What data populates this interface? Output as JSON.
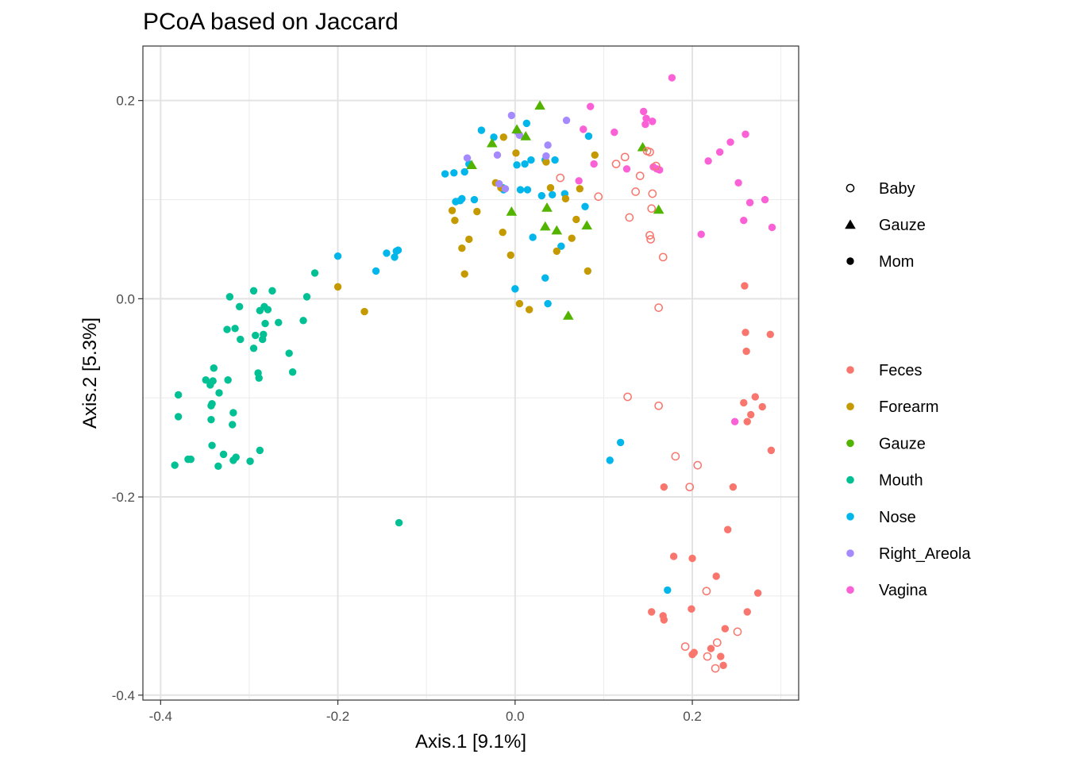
{
  "chart_data": {
    "type": "scatter",
    "title": "PCoA based on Jaccard",
    "xlabel": "Axis.1   [9.1%]",
    "ylabel": "Axis.2   [5.3%]",
    "xlim": [
      -0.42,
      0.32
    ],
    "ylim": [
      -0.405,
      0.255
    ],
    "x_ticks": [
      -0.4,
      -0.2,
      0.0,
      0.2
    ],
    "y_ticks": [
      -0.4,
      -0.2,
      0.0,
      0.2
    ],
    "x_tick_labels": [
      "-0.4",
      "-0.2",
      "0.0",
      "0.2"
    ],
    "y_tick_labels": [
      "-0.4",
      "-0.2",
      "0.0",
      "0.2"
    ],
    "grid": true,
    "background": "white",
    "legend_position": "right",
    "shape_legend": [
      {
        "name": "Baby",
        "shape": "open-circle"
      },
      {
        "name": "Gauze",
        "shape": "triangle"
      },
      {
        "name": "Mom",
        "shape": "circle"
      }
    ],
    "color_legend": [
      {
        "name": "Feces",
        "color": "#F8766D"
      },
      {
        "name": "Forearm",
        "color": "#C49A00"
      },
      {
        "name": "Gauze",
        "color": "#53B400"
      },
      {
        "name": "Mouth",
        "color": "#00C094"
      },
      {
        "name": "Nose",
        "color": "#00B6EB"
      },
      {
        "name": "Right_Areola",
        "color": "#A58AFF"
      },
      {
        "name": "Vagina",
        "color": "#FB61D7"
      }
    ],
    "series": [
      {
        "color": "Mouth",
        "shape": "Mom",
        "points": [
          [
            -0.322,
            0.002
          ],
          [
            -0.295,
            0.008
          ],
          [
            -0.274,
            0.008
          ],
          [
            -0.226,
            0.026
          ],
          [
            -0.235,
            0.002
          ],
          [
            -0.311,
            -0.008
          ],
          [
            -0.283,
            -0.008
          ],
          [
            -0.288,
            -0.012
          ],
          [
            -0.279,
            -0.011
          ],
          [
            -0.316,
            -0.03
          ],
          [
            -0.325,
            -0.031
          ],
          [
            -0.31,
            -0.041
          ],
          [
            -0.293,
            -0.037
          ],
          [
            -0.284,
            -0.036
          ],
          [
            -0.267,
            -0.024
          ],
          [
            -0.282,
            -0.025
          ],
          [
            -0.239,
            -0.022
          ],
          [
            -0.295,
            -0.05
          ],
          [
            -0.285,
            -0.041
          ],
          [
            -0.255,
            -0.055
          ],
          [
            -0.251,
            -0.074
          ],
          [
            -0.34,
            -0.07
          ],
          [
            -0.29,
            -0.075
          ],
          [
            -0.289,
            -0.08
          ],
          [
            -0.349,
            -0.082
          ],
          [
            -0.341,
            -0.083
          ],
          [
            -0.324,
            -0.082
          ],
          [
            -0.344,
            -0.087
          ],
          [
            -0.38,
            -0.097
          ],
          [
            -0.334,
            -0.095
          ],
          [
            -0.342,
            -0.106
          ],
          [
            -0.343,
            -0.108
          ],
          [
            -0.318,
            -0.115
          ],
          [
            -0.38,
            -0.119
          ],
          [
            -0.343,
            -0.122
          ],
          [
            -0.319,
            -0.127
          ],
          [
            -0.342,
            -0.148
          ],
          [
            -0.288,
            -0.153
          ],
          [
            -0.329,
            -0.157
          ],
          [
            -0.315,
            -0.16
          ],
          [
            -0.318,
            -0.163
          ],
          [
            -0.366,
            -0.162
          ],
          [
            -0.369,
            -0.162
          ],
          [
            -0.299,
            -0.164
          ],
          [
            -0.384,
            -0.168
          ],
          [
            -0.335,
            -0.169
          ],
          [
            -0.131,
            -0.226
          ]
        ]
      },
      {
        "color": "Nose",
        "shape": "Mom",
        "points": [
          [
            -0.038,
            0.17
          ],
          [
            -0.024,
            0.163
          ],
          [
            0.013,
            0.177
          ],
          [
            0.083,
            0.164
          ],
          [
            -0.079,
            0.126
          ],
          [
            -0.069,
            0.127
          ],
          [
            -0.052,
            0.136
          ],
          [
            0.002,
            0.135
          ],
          [
            0.011,
            0.136
          ],
          [
            0.018,
            0.14
          ],
          [
            0.034,
            0.14
          ],
          [
            0.045,
            0.14
          ],
          [
            -0.057,
            0.128
          ],
          [
            -0.014,
            0.112
          ],
          [
            -0.013,
            0.11
          ],
          [
            -0.06,
            0.101
          ],
          [
            -0.062,
            0.099
          ],
          [
            -0.067,
            0.098
          ],
          [
            -0.046,
            0.1
          ],
          [
            0.006,
            0.11
          ],
          [
            0.014,
            0.11
          ],
          [
            0.03,
            0.104
          ],
          [
            0.042,
            0.105
          ],
          [
            0.056,
            0.106
          ],
          [
            0.079,
            0.093
          ],
          [
            0.02,
            0.062
          ],
          [
            0.052,
            0.053
          ],
          [
            -0.2,
            0.043
          ],
          [
            -0.145,
            0.046
          ],
          [
            -0.134,
            0.048
          ],
          [
            -0.132,
            0.049
          ],
          [
            -0.136,
            0.042
          ],
          [
            -0.157,
            0.028
          ],
          [
            0.034,
            0.021
          ],
          [
            0.0,
            0.01
          ],
          [
            0.037,
            -0.005
          ],
          [
            0.119,
            -0.145
          ],
          [
            0.107,
            -0.163
          ],
          [
            0.172,
            -0.294
          ]
        ]
      },
      {
        "color": "Forearm",
        "shape": "Mom",
        "points": [
          [
            -0.013,
            0.163
          ],
          [
            0.001,
            0.147
          ],
          [
            0.09,
            0.145
          ],
          [
            0.035,
            0.138
          ],
          [
            -0.022,
            0.117
          ],
          [
            -0.016,
            0.112
          ],
          [
            0.04,
            0.112
          ],
          [
            0.073,
            0.111
          ],
          [
            0.057,
            0.101
          ],
          [
            -0.071,
            0.089
          ],
          [
            -0.043,
            0.088
          ],
          [
            -0.068,
            0.079
          ],
          [
            0.069,
            0.08
          ],
          [
            -0.052,
            0.06
          ],
          [
            -0.06,
            0.051
          ],
          [
            -0.014,
            0.067
          ],
          [
            0.064,
            0.061
          ],
          [
            0.047,
            0.048
          ],
          [
            -0.005,
            0.044
          ],
          [
            0.082,
            0.028
          ],
          [
            -0.057,
            0.025
          ],
          [
            -0.2,
            0.012
          ],
          [
            -0.17,
            -0.013
          ],
          [
            0.005,
            -0.005
          ],
          [
            0.016,
            -0.011
          ]
        ]
      },
      {
        "color": "Right_Areola",
        "shape": "Mom",
        "points": [
          [
            -0.004,
            0.185
          ],
          [
            0.058,
            0.18
          ],
          [
            0.002,
            0.169
          ],
          [
            0.005,
            0.165
          ],
          [
            0.037,
            0.155
          ],
          [
            -0.054,
            0.142
          ],
          [
            -0.02,
            0.145
          ],
          [
            0.035,
            0.144
          ],
          [
            -0.018,
            0.116
          ],
          [
            -0.011,
            0.111
          ]
        ]
      },
      {
        "color": "Gauze",
        "shape": "Gauze",
        "points": [
          [
            0.028,
            0.195
          ],
          [
            0.002,
            0.171
          ],
          [
            0.012,
            0.164
          ],
          [
            -0.026,
            0.157
          ],
          [
            0.144,
            0.153
          ],
          [
            -0.049,
            0.135
          ],
          [
            0.036,
            0.092
          ],
          [
            -0.004,
            0.088
          ],
          [
            0.162,
            0.09
          ],
          [
            0.047,
            0.069
          ],
          [
            0.034,
            0.073
          ],
          [
            0.081,
            0.074
          ],
          [
            0.06,
            -0.017
          ]
        ]
      },
      {
        "color": "Vagina",
        "shape": "Mom",
        "points": [
          [
            0.177,
            0.223
          ],
          [
            0.085,
            0.194
          ],
          [
            0.145,
            0.189
          ],
          [
            0.148,
            0.182
          ],
          [
            0.147,
            0.176
          ],
          [
            0.155,
            0.179
          ],
          [
            0.077,
            0.171
          ],
          [
            0.112,
            0.168
          ],
          [
            0.26,
            0.166
          ],
          [
            0.243,
            0.158
          ],
          [
            0.231,
            0.148
          ],
          [
            0.218,
            0.139
          ],
          [
            0.126,
            0.131
          ],
          [
            0.156,
            0.133
          ],
          [
            0.16,
            0.131
          ],
          [
            0.163,
            0.13
          ],
          [
            0.072,
            0.119
          ],
          [
            0.089,
            0.136
          ],
          [
            0.252,
            0.117
          ],
          [
            0.282,
            0.1
          ],
          [
            0.265,
            0.097
          ],
          [
            0.258,
            0.079
          ],
          [
            0.29,
            0.072
          ],
          [
            0.21,
            0.065
          ],
          [
            0.248,
            -0.124
          ]
        ]
      },
      {
        "color": "Feces",
        "shape": "Baby",
        "points": [
          [
            0.051,
            0.122
          ],
          [
            0.124,
            0.143
          ],
          [
            0.149,
            0.149
          ],
          [
            0.152,
            0.148
          ],
          [
            0.114,
            0.136
          ],
          [
            0.159,
            0.134
          ],
          [
            0.141,
            0.124
          ],
          [
            0.094,
            0.103
          ],
          [
            0.136,
            0.108
          ],
          [
            0.155,
            0.106
          ],
          [
            0.154,
            0.091
          ],
          [
            0.129,
            0.082
          ],
          [
            0.152,
            0.064
          ],
          [
            0.153,
            0.06
          ],
          [
            0.167,
            0.042
          ],
          [
            0.162,
            -0.009
          ],
          [
            0.127,
            -0.099
          ],
          [
            0.162,
            -0.108
          ],
          [
            0.181,
            -0.159
          ],
          [
            0.206,
            -0.168
          ],
          [
            0.197,
            -0.19
          ],
          [
            0.216,
            -0.295
          ],
          [
            0.251,
            -0.336
          ],
          [
            0.192,
            -0.351
          ],
          [
            0.228,
            -0.347
          ],
          [
            0.217,
            -0.361
          ],
          [
            0.226,
            -0.373
          ]
        ]
      },
      {
        "color": "Feces",
        "shape": "Mom",
        "points": [
          [
            0.259,
            0.013
          ],
          [
            0.26,
            -0.034
          ],
          [
            0.288,
            -0.036
          ],
          [
            0.261,
            -0.053
          ],
          [
            0.271,
            -0.099
          ],
          [
            0.279,
            -0.109
          ],
          [
            0.258,
            -0.105
          ],
          [
            0.266,
            -0.117
          ],
          [
            0.262,
            -0.124
          ],
          [
            0.289,
            -0.153
          ],
          [
            0.168,
            -0.19
          ],
          [
            0.246,
            -0.19
          ],
          [
            0.24,
            -0.233
          ],
          [
            0.179,
            -0.26
          ],
          [
            0.2,
            -0.262
          ],
          [
            0.227,
            -0.28
          ],
          [
            0.274,
            -0.297
          ],
          [
            0.199,
            -0.313
          ],
          [
            0.262,
            -0.316
          ],
          [
            0.154,
            -0.316
          ],
          [
            0.167,
            -0.32
          ],
          [
            0.168,
            -0.324
          ],
          [
            0.237,
            -0.333
          ],
          [
            0.202,
            -0.357
          ],
          [
            0.2,
            -0.359
          ],
          [
            0.221,
            -0.353
          ],
          [
            0.232,
            -0.361
          ],
          [
            0.235,
            -0.37
          ]
        ]
      }
    ]
  }
}
